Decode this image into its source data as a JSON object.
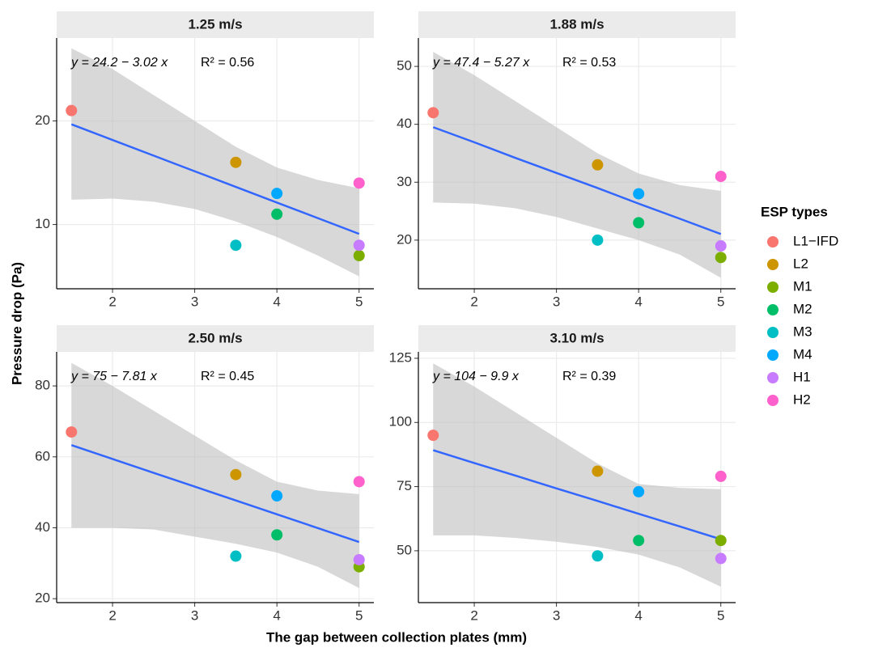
{
  "chart_data": [
    {
      "type": "scatter",
      "title": "1.25 m/s",
      "x": [
        1.5,
        3.5,
        5,
        4,
        3.5,
        4,
        5,
        5
      ],
      "values": [
        21,
        16,
        7,
        11,
        8,
        13,
        8,
        14
      ],
      "xlim": [
        1.32,
        5.18
      ],
      "xticks": [
        2,
        3,
        4,
        5
      ],
      "ylim": [
        3.8,
        28
      ],
      "yticks": [
        10,
        20
      ],
      "equation": "y = 24.2 − 3.02 x",
      "r2": "R² = 0.56",
      "fit": {
        "x": [
          1.5,
          2,
          2.5,
          3,
          3.5,
          4,
          4.5,
          5
        ],
        "y": [
          19.67,
          18.16,
          16.65,
          15.14,
          13.63,
          12.12,
          10.61,
          9.1
        ],
        "upper": [
          27,
          25,
          22.5,
          20,
          17.5,
          15.5,
          14.3,
          13.5
        ],
        "lower": [
          12.4,
          12.5,
          12.2,
          11.5,
          10.3,
          8.8,
          7,
          5
        ]
      }
    },
    {
      "type": "scatter",
      "title": "1.88 m/s",
      "x": [
        1.5,
        3.5,
        5,
        4,
        3.5,
        4,
        5,
        5
      ],
      "values": [
        42,
        33,
        17,
        23,
        20,
        28,
        19,
        31
      ],
      "xlim": [
        1.32,
        5.18
      ],
      "xticks": [
        2,
        3,
        4,
        5
      ],
      "ylim": [
        11.6,
        54.9
      ],
      "yticks": [
        20,
        30,
        40,
        50
      ],
      "equation": "y = 47.4 − 5.27 x",
      "r2": "R² = 0.53",
      "fit": {
        "x": [
          1.5,
          2,
          2.5,
          3,
          3.5,
          4,
          4.5,
          5
        ],
        "y": [
          39.5,
          36.9,
          34.2,
          31.6,
          29,
          26.3,
          23.7,
          21.05
        ],
        "upper": [
          52.5,
          48.5,
          44,
          39.5,
          35,
          31.5,
          29.5,
          28.5
        ],
        "lower": [
          26.5,
          26.3,
          25.5,
          24,
          22,
          20,
          17.5,
          13.5
        ]
      }
    },
    {
      "type": "scatter",
      "title": "2.50 m/s",
      "x": [
        1.5,
        3.5,
        5,
        4,
        3.5,
        4,
        5,
        5
      ],
      "values": [
        67,
        55,
        29,
        38,
        32,
        49,
        31,
        53
      ],
      "xlim": [
        1.32,
        5.18
      ],
      "xticks": [
        2,
        3,
        4,
        5
      ],
      "ylim": [
        18.9,
        89.6
      ],
      "yticks": [
        20,
        40,
        60,
        80
      ],
      "equation": "y = 75 − 7.81 x",
      "r2": "R² = 0.45",
      "fit": {
        "x": [
          1.5,
          2,
          2.5,
          3,
          3.5,
          4,
          4.5,
          5
        ],
        "y": [
          63.3,
          59.4,
          55.5,
          51.6,
          47.7,
          43.8,
          39.9,
          36
        ],
        "upper": [
          86.5,
          80,
          73,
          66,
          59,
          53,
          50.5,
          49.5
        ],
        "lower": [
          40,
          40,
          39.5,
          37.5,
          35.5,
          33,
          29,
          23
        ]
      }
    },
    {
      "type": "scatter",
      "title": "3.10 m/s",
      "x": [
        1.5,
        3.5,
        5,
        4,
        3.5,
        4,
        5,
        5
      ],
      "values": [
        95,
        81,
        54,
        54,
        48,
        73,
        47,
        79
      ],
      "xlim": [
        1.32,
        5.18
      ],
      "xticks": [
        2,
        3,
        4,
        5
      ],
      "ylim": [
        29.8,
        127.5
      ],
      "yticks": [
        50,
        75,
        100,
        125
      ],
      "equation": "y = 104 − 9.9 x",
      "r2": "R² = 0.39",
      "fit": {
        "x": [
          1.5,
          2,
          2.5,
          3,
          3.5,
          4,
          4.5,
          5
        ],
        "y": [
          89.2,
          84.2,
          79.3,
          74.3,
          69.4,
          64.4,
          59.5,
          54.5
        ],
        "upper": [
          123,
          114,
          104,
          94,
          84,
          76,
          74.5,
          74
        ],
        "lower": [
          56,
          56,
          55,
          53.5,
          51.5,
          48.5,
          43.5,
          36
        ]
      }
    }
  ],
  "x_label": "The gap between collection plates (mm)",
  "y_label": "Pressure drop (Pa)",
  "legend": {
    "title": "ESP types",
    "names": [
      "L1−IFD",
      "L2",
      "M1",
      "M2",
      "M3",
      "M4",
      "H1",
      "H2"
    ],
    "colors": [
      "#F8766D",
      "#CD9600",
      "#7CAE00",
      "#00BE67",
      "#00BFC4",
      "#00A9FF",
      "#C77CFF",
      "#FF61CC"
    ]
  },
  "line_color": "#3366FF",
  "band_color": "#BEBEBE",
  "grid": true
}
